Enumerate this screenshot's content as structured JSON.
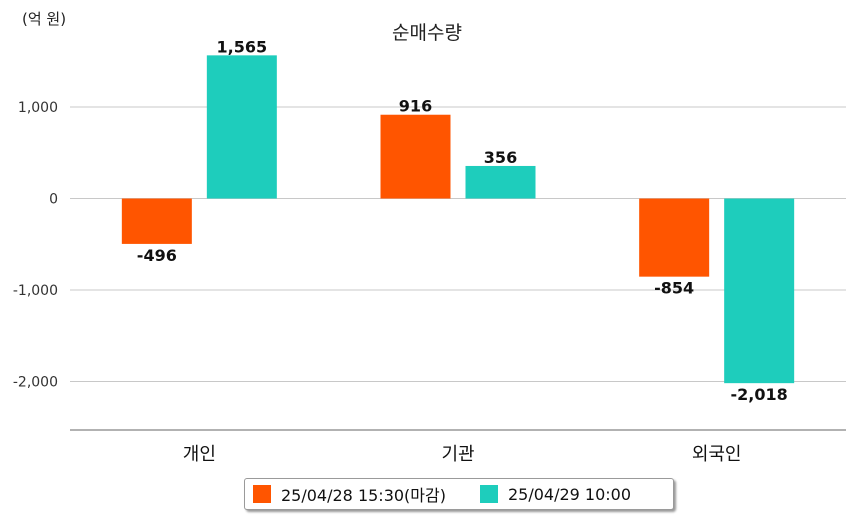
{
  "chart_data": {
    "type": "bar",
    "title": "순매수량",
    "unit_label": "(억 원)",
    "categories": [
      "개인",
      "기관",
      "외국인"
    ],
    "series": [
      {
        "name": "25/04/28 15:30(마감)",
        "color": "#ff5500",
        "values": [
          -496,
          916,
          -854
        ],
        "labels": [
          "-496",
          "916",
          "-854"
        ]
      },
      {
        "name": "25/04/29 10:00",
        "color": "#1ecdbc",
        "values": [
          1565,
          356,
          -2018
        ],
        "labels": [
          "1,565",
          "356",
          "-2,018"
        ]
      }
    ],
    "ylim": [
      -2530,
      1700
    ],
    "y_ticks": [
      1000,
      0,
      -1000,
      -2000
    ],
    "y_tick_labels": [
      "1,000",
      "0",
      "-1,000",
      "-2,000"
    ],
    "grid": true,
    "legend_position": "bottom"
  }
}
